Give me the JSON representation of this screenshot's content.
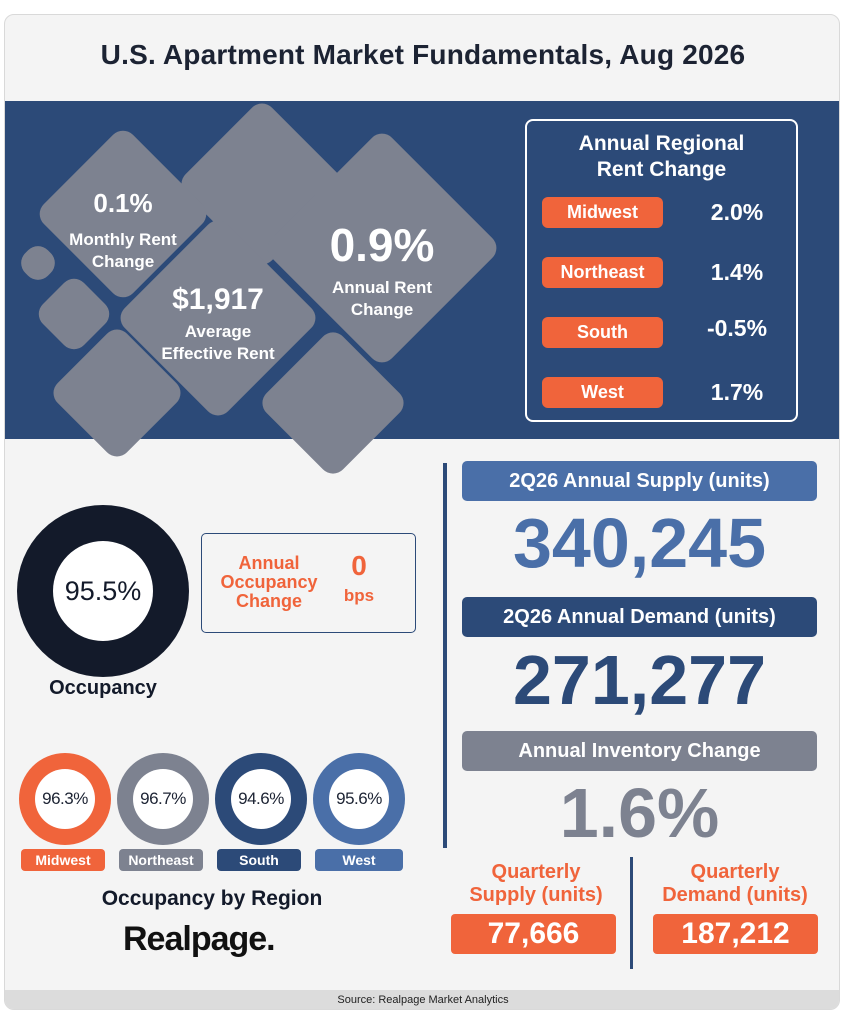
{
  "title": "U.S. Apartment Market Fundamentals, Aug 2026",
  "kpis": {
    "monthly_rent": {
      "value": "0.1%",
      "label_line1": "Monthly Rent",
      "label_line2": "Change"
    },
    "avg_rent": {
      "value": "$1,917",
      "label_line1": "Average",
      "label_line2": "Effective Rent"
    },
    "annual_rent": {
      "value": "0.9%",
      "label_line1": "Annual Rent",
      "label_line2": "Change"
    }
  },
  "regional_rent": {
    "title_line1": "Annual Regional",
    "title_line2": "Rent Change",
    "rows": [
      {
        "region": "Midwest",
        "value": "2.0%"
      },
      {
        "region": "Northeast",
        "value": "1.4%"
      },
      {
        "region": "South",
        "value": "-0.5%"
      },
      {
        "region": "West",
        "value": "1.7%"
      }
    ]
  },
  "occupancy": {
    "value": "95.5%",
    "label": "Occupancy",
    "change_label_line1": "Annual",
    "change_label_line2": "Occupancy",
    "change_label_line3": "Change",
    "change_value": "0",
    "change_unit": "bps"
  },
  "occupancy_by_region": {
    "title": "Occupancy by Region",
    "regions": [
      {
        "name": "Midwest",
        "value": "96.3%",
        "color": "#f0643b"
      },
      {
        "name": "Northeast",
        "value": "96.7%",
        "color": "#7d8290"
      },
      {
        "name": "South",
        "value": "94.6%",
        "color": "#2c4a78"
      },
      {
        "name": "West",
        "value": "95.6%",
        "color": "#4a6fa8"
      }
    ]
  },
  "supply": {
    "label": "2Q26 Annual Supply (units)",
    "value": "340,245"
  },
  "demand": {
    "label": "2Q26 Annual Demand (units)",
    "value": "271,277"
  },
  "inventory": {
    "label": "Annual Inventory Change",
    "value": "1.6%"
  },
  "quarterly_supply": {
    "label_line1": "Quarterly",
    "label_line2": "Supply (units)",
    "value": "77,666"
  },
  "quarterly_demand": {
    "label_line1": "Quarterly",
    "label_line2": "Demand (units)",
    "value": "187,212"
  },
  "logo_text": "Realpage.",
  "source": "Source: Realpage Market Analytics",
  "colors": {
    "navy": "#2c4a78",
    "orange": "#f0643b",
    "gray": "#7d8290",
    "dark": "#131a2a",
    "light_blue": "#4a6fa8"
  }
}
